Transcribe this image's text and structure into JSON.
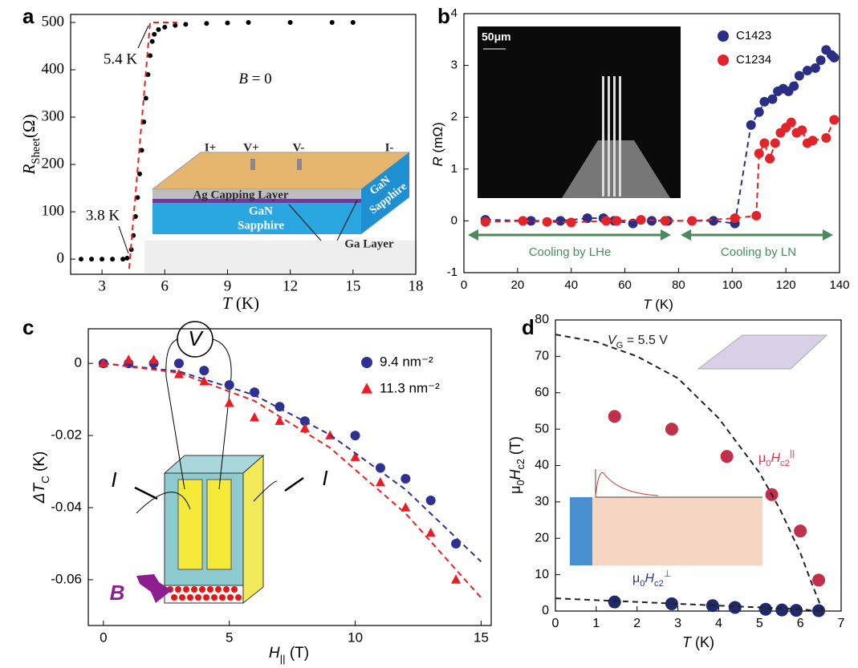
{
  "chart_data": [
    {
      "type": "scatter",
      "panel": "a",
      "xlabel": [
        {
          "text": "T",
          "style": "italic"
        },
        {
          "text": " (K)"
        }
      ],
      "ylabel": [
        {
          "text": "R",
          "style": "italic"
        },
        {
          "text": "Sheet",
          "style": "sub"
        },
        {
          "text": "(Ω)"
        }
      ],
      "xlim": [
        1.5,
        18
      ],
      "xticks": [
        3,
        6,
        9,
        12,
        15,
        18
      ],
      "ylim": [
        -32,
        517
      ],
      "yticks": [
        0,
        100,
        200,
        300,
        400,
        500
      ],
      "series": [
        {
          "color": "#000000",
          "mode": "markers",
          "marker": "circle",
          "x": [
            2.0,
            2.5,
            3.0,
            3.5,
            4.0,
            4.2,
            4.4,
            4.5,
            4.6,
            4.7,
            4.8,
            4.9,
            5.0,
            5.1,
            5.2,
            5.3,
            5.4,
            5.5,
            5.7,
            6.0,
            6.5,
            7,
            8,
            9,
            10,
            12,
            14,
            15
          ],
          "values": [
            0,
            0,
            0,
            0,
            0,
            2,
            20,
            50,
            90,
            130,
            180,
            230,
            290,
            340,
            390,
            430,
            460,
            475,
            485,
            490,
            494,
            496,
            498,
            499,
            500,
            500,
            500,
            500
          ]
        },
        {
          "color": "#e8231f",
          "mode": "line",
          "dash": true,
          "x": [
            4.3,
            5.3,
            6.6
          ],
          "values": [
            -20,
            500,
            500
          ]
        }
      ],
      "annotations": [
        {
          "text": "5.4 K"
        },
        {
          "text": "3.8 K"
        },
        {
          "text": [
            {
              "text": "B",
              "style": "italic"
            },
            {
              "text": " = 0"
            }
          ]
        }
      ],
      "inset_labels": [
        "I+",
        "V+",
        "V-",
        "I-",
        "Ag Capping Layer",
        "GaN",
        "Sapphire",
        "GaN",
        "Sapphire",
        "Ga Layer"
      ]
    },
    {
      "type": "scatter",
      "panel": "b",
      "xlabel": [
        {
          "text": "T",
          "style": "italic"
        },
        {
          "text": " (K)"
        }
      ],
      "ylabel": [
        {
          "text": "R",
          "style": "italic"
        },
        {
          "text": " (mΩ)"
        }
      ],
      "xlim": [
        0,
        140
      ],
      "xticks": [
        0,
        20,
        40,
        60,
        80,
        100,
        120,
        140
      ],
      "ylim": [
        -1,
        4
      ],
      "yticks": [
        -1,
        0,
        1,
        2,
        3,
        4
      ],
      "legend": "upper right",
      "series": [
        {
          "name": "C1423",
          "color": "#2b2e83",
          "mode": "lines+markers",
          "marker": "circle",
          "dash": true,
          "x": [
            8,
            25,
            36,
            46,
            52,
            56,
            63,
            70,
            76,
            93,
            101,
            107,
            110,
            112,
            115,
            117,
            119,
            121,
            123,
            125,
            128,
            131,
            133,
            135,
            137,
            138
          ],
          "values": [
            0.02,
            0,
            0,
            0.05,
            0.05,
            0,
            -0.05,
            0,
            0,
            0,
            -0.05,
            1.85,
            2.1,
            2.3,
            2.35,
            2.5,
            2.55,
            2.5,
            2.6,
            2.8,
            2.9,
            2.95,
            3.1,
            3.3,
            3.2,
            3.15
          ]
        },
        {
          "name": "C1234",
          "color": "#e0242a",
          "mode": "lines+markers",
          "marker": "circle",
          "dash": true,
          "x": [
            8,
            22,
            31,
            40,
            53,
            57,
            66,
            75,
            85,
            101,
            109,
            110,
            112,
            114,
            116,
            118,
            120,
            122,
            124,
            126,
            128,
            130,
            135,
            138
          ],
          "values": [
            -0.02,
            0,
            -0.02,
            -0.03,
            0,
            0,
            0.02,
            0,
            0,
            0.05,
            0.1,
            1.3,
            1.5,
            1.2,
            1.5,
            1.7,
            1.8,
            1.9,
            1.7,
            1.75,
            1.5,
            1.55,
            1.6,
            1.95
          ]
        }
      ],
      "annotations": [
        {
          "text": "Cooling by LHe",
          "color": "#4a8a5e"
        },
        {
          "text": "Cooling by LN",
          "color": "#4a8a5e"
        }
      ],
      "inset_labels": [
        "50μm"
      ]
    },
    {
      "type": "scatter",
      "panel": "c",
      "xlabel": [
        {
          "text": "H",
          "style": "italic"
        },
        {
          "text": "||",
          "style": "sub"
        },
        {
          "text": " (T)"
        }
      ],
      "ylabel": [
        {
          "text": "ΔT",
          "style": "italic"
        },
        {
          "text": "C",
          "style": "sub"
        },
        {
          "text": " (K)"
        }
      ],
      "xlim": [
        -0.6,
        15.4
      ],
      "xticks": [
        0,
        5,
        10,
        15
      ],
      "ylim": [
        -0.0727,
        0.0096
      ],
      "yticks": [
        0,
        -0.02,
        -0.04,
        -0.06
      ],
      "legend": "upper right",
      "series": [
        {
          "name": "9.4 nm⁻²",
          "color": "#2e3192",
          "mode": "markers",
          "marker": "circle",
          "x": [
            0,
            1,
            2,
            3,
            4,
            5,
            6,
            7,
            8,
            10,
            11,
            12,
            13,
            14
          ],
          "values": [
            0,
            0,
            0,
            0,
            -0.002,
            -0.006,
            -0.008,
            -0.012,
            -0.016,
            -0.02,
            -0.029,
            -0.032,
            -0.038,
            -0.05
          ]
        },
        {
          "name": "11.3 nm⁻²",
          "color": "#ed1c24",
          "mode": "markers",
          "marker": "triangle",
          "x": [
            0,
            1,
            2,
            3,
            4,
            5,
            6,
            7,
            8,
            9,
            10,
            11,
            12,
            13,
            14
          ],
          "values": [
            0,
            0.001,
            0.001,
            -0.003,
            -0.005,
            -0.011,
            -0.015,
            -0.016,
            -0.018,
            -0.02,
            -0.026,
            -0.033,
            -0.04,
            -0.047,
            -0.06
          ]
        },
        {
          "color": "#2e3192",
          "mode": "line",
          "dash": true,
          "x": [
            0,
            3,
            6,
            9,
            12,
            15
          ],
          "values": [
            0,
            -0.0022,
            -0.0088,
            -0.0198,
            -0.035,
            -0.055
          ]
        },
        {
          "color": "#ed1c24",
          "mode": "line",
          "dash": true,
          "x": [
            0,
            3,
            6,
            9,
            12,
            15
          ],
          "values": [
            0,
            -0.0026,
            -0.0104,
            -0.0234,
            -0.0416,
            -0.065
          ]
        }
      ],
      "annotations": [
        {
          "text": "I",
          "color": "#000000"
        },
        {
          "text": "I",
          "color": "#000000"
        },
        {
          "text": "V",
          "color": "#000000"
        },
        {
          "text": "B",
          "color": "#8e1e8f"
        }
      ]
    },
    {
      "type": "scatter",
      "panel": "d",
      "xlabel": [
        {
          "text": "T",
          "style": "italic"
        },
        {
          "text": " (K)"
        }
      ],
      "ylabel": [
        {
          "text": "μ"
        },
        {
          "text": "0",
          "style": "sub"
        },
        {
          "text": "H",
          "style": "italic"
        },
        {
          "text": "c2",
          "style": "sub"
        },
        {
          "text": " (T)"
        }
      ],
      "xlim": [
        0,
        7
      ],
      "xticks": [
        0,
        1,
        2,
        3,
        4,
        5,
        6,
        7
      ],
      "ylim": [
        0,
        80
      ],
      "yticks": [
        0,
        10,
        20,
        30,
        40,
        50,
        60,
        70,
        80
      ],
      "series": [
        {
          "color": "#c0304a",
          "mode": "markers",
          "marker": "circle",
          "x": [
            1.45,
            2.85,
            4.2,
            5.3,
            6.0,
            6.45
          ],
          "values": [
            53.5,
            50,
            42.5,
            32,
            22,
            8.5
          ]
        },
        {
          "color": "#1f2a6b",
          "mode": "markers",
          "marker": "circle",
          "x": [
            1.45,
            2.85,
            3.85,
            4.4,
            5.15,
            5.55,
            5.9,
            6.45
          ],
          "values": [
            2.5,
            2,
            1.5,
            1,
            0.5,
            0.3,
            0.2,
            0.1
          ]
        },
        {
          "color": "#222222",
          "mode": "line",
          "dash": true,
          "x": [
            0,
            1,
            2,
            3,
            4,
            5,
            5.5,
            6,
            6.3,
            6.55
          ],
          "values": [
            76,
            74,
            70,
            64,
            53,
            38,
            28,
            16,
            7,
            0
          ]
        },
        {
          "color": "#222222",
          "mode": "line",
          "dash": true,
          "x": [
            0,
            2,
            4,
            6,
            6.5
          ],
          "values": [
            3.5,
            2.5,
            1.5,
            0.5,
            0
          ]
        }
      ],
      "annotations": [
        {
          "text": [
            {
              "text": "V",
              "style": "italic"
            },
            {
              "text": "G",
              "style": "sub"
            },
            {
              "text": " = 5.5 V"
            }
          ],
          "color": "#222222"
        },
        {
          "text": [
            {
              "text": "μ"
            },
            {
              "text": "0",
              "style": "sub"
            },
            {
              "text": "H",
              "style": "italic"
            },
            {
              "text": "c2",
              "style": "sub"
            },
            {
              "text": "||",
              "style": "sup"
            }
          ],
          "color": "#d8304c"
        },
        {
          "text": [
            {
              "text": "μ"
            },
            {
              "text": "0",
              "style": "sub"
            },
            {
              "text": "H",
              "style": "italic"
            },
            {
              "text": "c2",
              "style": "sub"
            },
            {
              "text": "⊥",
              "style": "sup"
            }
          ],
          "color": "#2b3a8a"
        }
      ]
    }
  ]
}
